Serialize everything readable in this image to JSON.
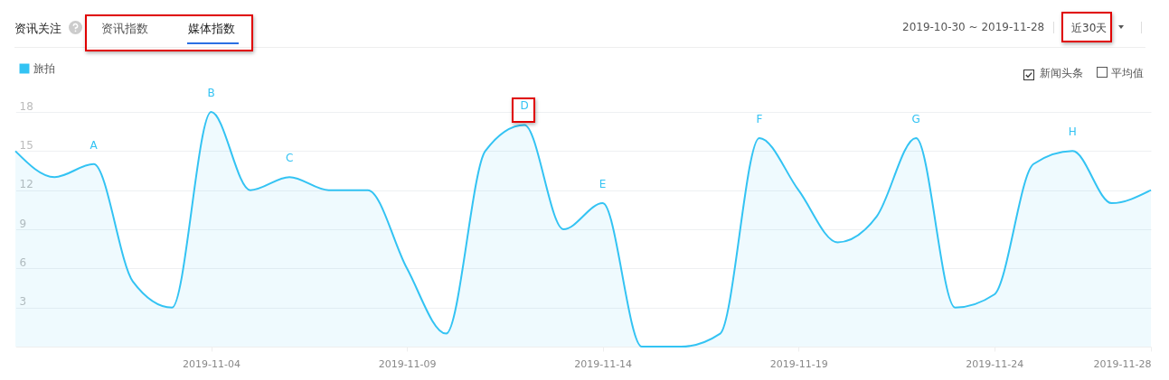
{
  "chart_data": {
    "type": "area",
    "title": "资讯关注",
    "annotations": [
      "资讯指数",
      "媒体指数",
      "2019-10-30 ~ 2019-11-28",
      "近30天",
      "新闻头条",
      "平均值",
      {
        "text": "A",
        "x": "2019-11-01",
        "y": 14
      },
      {
        "text": "B",
        "x": "2019-11-04",
        "y": 18
      },
      {
        "text": "C",
        "x": "2019-11-06",
        "y": 13
      },
      {
        "text": "D",
        "x": "2019-11-12",
        "y": 17
      },
      {
        "text": "E",
        "x": "2019-11-14",
        "y": 11
      },
      {
        "text": "F",
        "x": "2019-11-18",
        "y": 16
      },
      {
        "text": "G",
        "x": "2019-11-22",
        "y": 16
      },
      {
        "text": "H",
        "x": "2019-11-26",
        "y": 15
      }
    ],
    "x": [
      "2019-10-30",
      "2019-10-31",
      "2019-11-01",
      "2019-11-02",
      "2019-11-03",
      "2019-11-04",
      "2019-11-05",
      "2019-11-06",
      "2019-11-07",
      "2019-11-08",
      "2019-11-09",
      "2019-11-10",
      "2019-11-11",
      "2019-11-12",
      "2019-11-13",
      "2019-11-14",
      "2019-11-15",
      "2019-11-16",
      "2019-11-17",
      "2019-11-18",
      "2019-11-19",
      "2019-11-20",
      "2019-11-21",
      "2019-11-22",
      "2019-11-23",
      "2019-11-24",
      "2019-11-25",
      "2019-11-26",
      "2019-11-27",
      "2019-11-28"
    ],
    "series": [
      {
        "name": "旅拍",
        "color": "#33c3f3",
        "values": [
          15,
          13,
          14,
          5,
          3,
          18,
          12,
          13,
          12,
          12,
          6,
          1,
          15,
          17,
          9,
          11,
          0,
          0,
          1,
          16,
          12,
          8,
          10,
          16,
          3,
          4,
          14,
          15,
          11,
          12
        ]
      }
    ],
    "xlim": [
      "2019-10-30",
      "2019-11-28"
    ],
    "xticks": [
      "2019-11-04",
      "2019-11-09",
      "2019-11-14",
      "2019-11-19",
      "2019-11-24",
      "2019-11-28"
    ],
    "ylim": [
      0,
      18
    ],
    "yticks": [
      3,
      6,
      9,
      12,
      15,
      18
    ],
    "grid": "y",
    "legend": "top left"
  }
}
